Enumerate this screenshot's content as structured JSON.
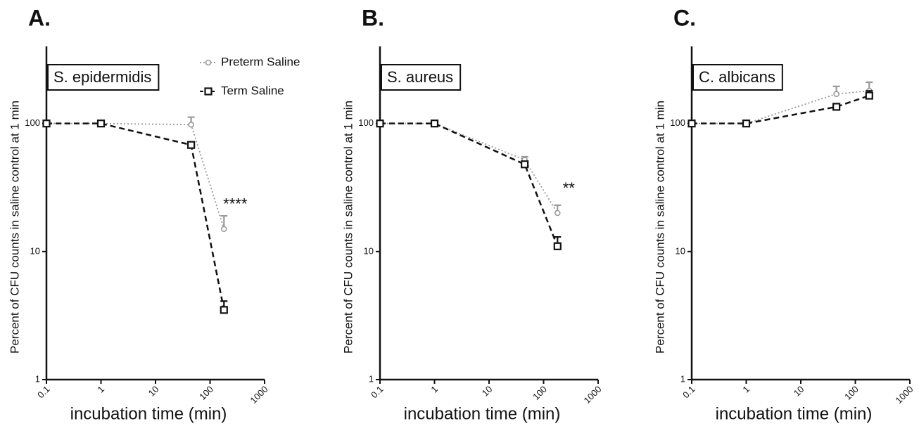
{
  "chart_data": [
    {
      "type": "line",
      "panel_label": "A.",
      "box_label": "S. epidermidis",
      "annotation": "****",
      "xlabel": "incubation time (min)",
      "ylabel": "Percent of CFU counts in saline control at 1 min",
      "xscale": "log",
      "yscale": "log",
      "xlim": [
        0.1,
        1000
      ],
      "ylim": [
        1,
        400
      ],
      "xticks": [
        0.1,
        1,
        10,
        100,
        1000
      ],
      "yticks": [
        1,
        10,
        100
      ],
      "legend": "upper right",
      "x": [
        0.1,
        1,
        45,
        180
      ],
      "series": [
        {
          "name": "Preterm Saline",
          "color": "#999999",
          "marker": "circle",
          "values": [
            100,
            100,
            98,
            15
          ],
          "errors": [
            null,
            null,
            14,
            4
          ]
        },
        {
          "name": "Term Saline",
          "color": "#111111",
          "marker": "square",
          "values": [
            100,
            100,
            68,
            3.5
          ],
          "errors": [
            null,
            null,
            null,
            0.6
          ]
        }
      ]
    },
    {
      "type": "line",
      "panel_label": "B.",
      "box_label": "S. aureus",
      "annotation": "**",
      "xlabel": "incubation time (min)",
      "ylabel": "Percent of CFU counts in saline control at 1 min",
      "xscale": "log",
      "yscale": "log",
      "xlim": [
        0.1,
        1000
      ],
      "ylim": [
        1,
        400
      ],
      "xticks": [
        0.1,
        1,
        10,
        100,
        1000
      ],
      "yticks": [
        1,
        10,
        100
      ],
      "x": [
        0.1,
        1,
        45,
        180
      ],
      "series": [
        {
          "color": "#999999",
          "marker": "circle",
          "values": [
            100,
            100,
            52,
            20
          ],
          "errors": [
            null,
            null,
            3,
            3
          ]
        },
        {
          "color": "#111111",
          "marker": "square",
          "values": [
            100,
            100,
            48,
            11
          ],
          "errors": [
            null,
            null,
            null,
            2
          ]
        }
      ]
    },
    {
      "type": "line",
      "panel_label": "C.",
      "box_label": "C. albicans",
      "xlabel": "incubation time (min)",
      "ylabel": "Percent of CFU counts in saline control at 1 min",
      "xscale": "log",
      "yscale": "log",
      "xlim": [
        0.1,
        1000
      ],
      "ylim": [
        1,
        400
      ],
      "xticks": [
        0.1,
        1,
        10,
        100,
        1000
      ],
      "yticks": [
        1,
        10,
        100
      ],
      "x": [
        0.1,
        1,
        45,
        180
      ],
      "series": [
        {
          "color": "#999999",
          "marker": "circle",
          "values": [
            100,
            100,
            170,
            180
          ],
          "errors": [
            null,
            null,
            25,
            30
          ]
        },
        {
          "color": "#111111",
          "marker": "square",
          "values": [
            100,
            100,
            135,
            165
          ],
          "errors": [
            null,
            null,
            null,
            15
          ]
        }
      ]
    }
  ]
}
